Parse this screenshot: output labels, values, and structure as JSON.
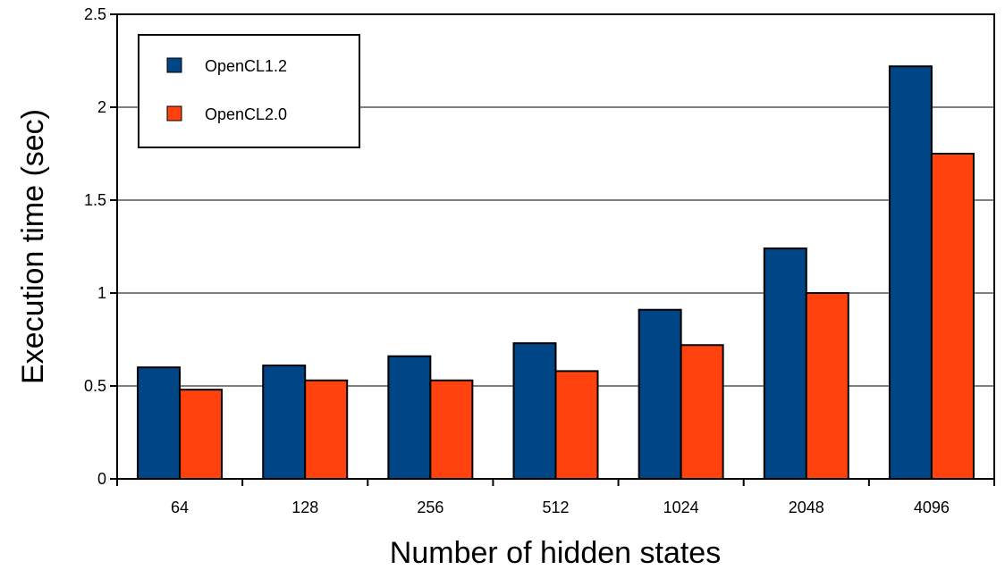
{
  "chart_data": {
    "type": "bar",
    "title": "",
    "xlabel": "Number of hidden states",
    "ylabel": "Execution time (sec)",
    "categories": [
      "64",
      "128",
      "256",
      "512",
      "1024",
      "2048",
      "4096"
    ],
    "series": [
      {
        "name": "OpenCL1.2",
        "color": "#004586",
        "values": [
          0.6,
          0.61,
          0.66,
          0.73,
          0.91,
          1.24,
          2.22
        ]
      },
      {
        "name": "OpenCL2.0",
        "color": "#ff420e",
        "values": [
          0.48,
          0.53,
          0.53,
          0.58,
          0.72,
          1.0,
          1.75
        ]
      }
    ],
    "ylim": [
      0,
      2.5
    ],
    "yticks": [
      "0",
      "0.5",
      "1",
      "1.5",
      "2",
      "2.5"
    ],
    "grid": "horizontal",
    "legend_position": "top-left"
  }
}
